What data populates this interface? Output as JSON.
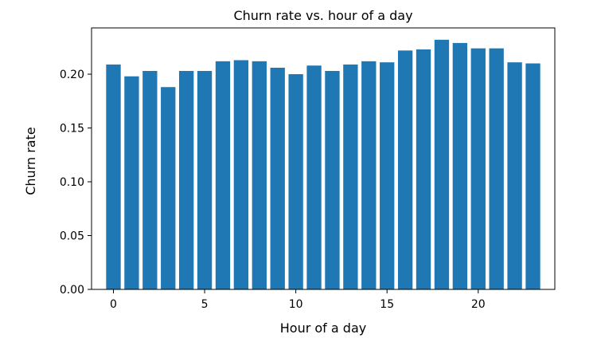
{
  "chart_data": {
    "type": "bar",
    "title": "Churn rate vs. hour of a day",
    "xlabel": "Hour of a day",
    "ylabel": "Churn rate",
    "categories": [
      0,
      1,
      2,
      3,
      4,
      5,
      6,
      7,
      8,
      9,
      10,
      11,
      12,
      13,
      14,
      15,
      16,
      17,
      18,
      19,
      20,
      21,
      22,
      23
    ],
    "values": [
      0.209,
      0.198,
      0.203,
      0.188,
      0.203,
      0.203,
      0.212,
      0.213,
      0.212,
      0.206,
      0.2,
      0.208,
      0.203,
      0.209,
      0.212,
      0.211,
      0.222,
      0.223,
      0.232,
      0.229,
      0.224,
      0.224,
      0.211,
      0.21
    ],
    "xlim": [
      -1.2,
      24.2
    ],
    "ylim": [
      0,
      0.243
    ],
    "xticks": [
      0,
      5,
      10,
      15,
      20
    ],
    "yticks": [
      0.0,
      0.05,
      0.1,
      0.15,
      0.2
    ],
    "ytick_labels": [
      "0.00",
      "0.05",
      "0.10",
      "0.15",
      "0.20"
    ],
    "bar_color": "#1f77b4",
    "grid": false,
    "legend": "none"
  }
}
